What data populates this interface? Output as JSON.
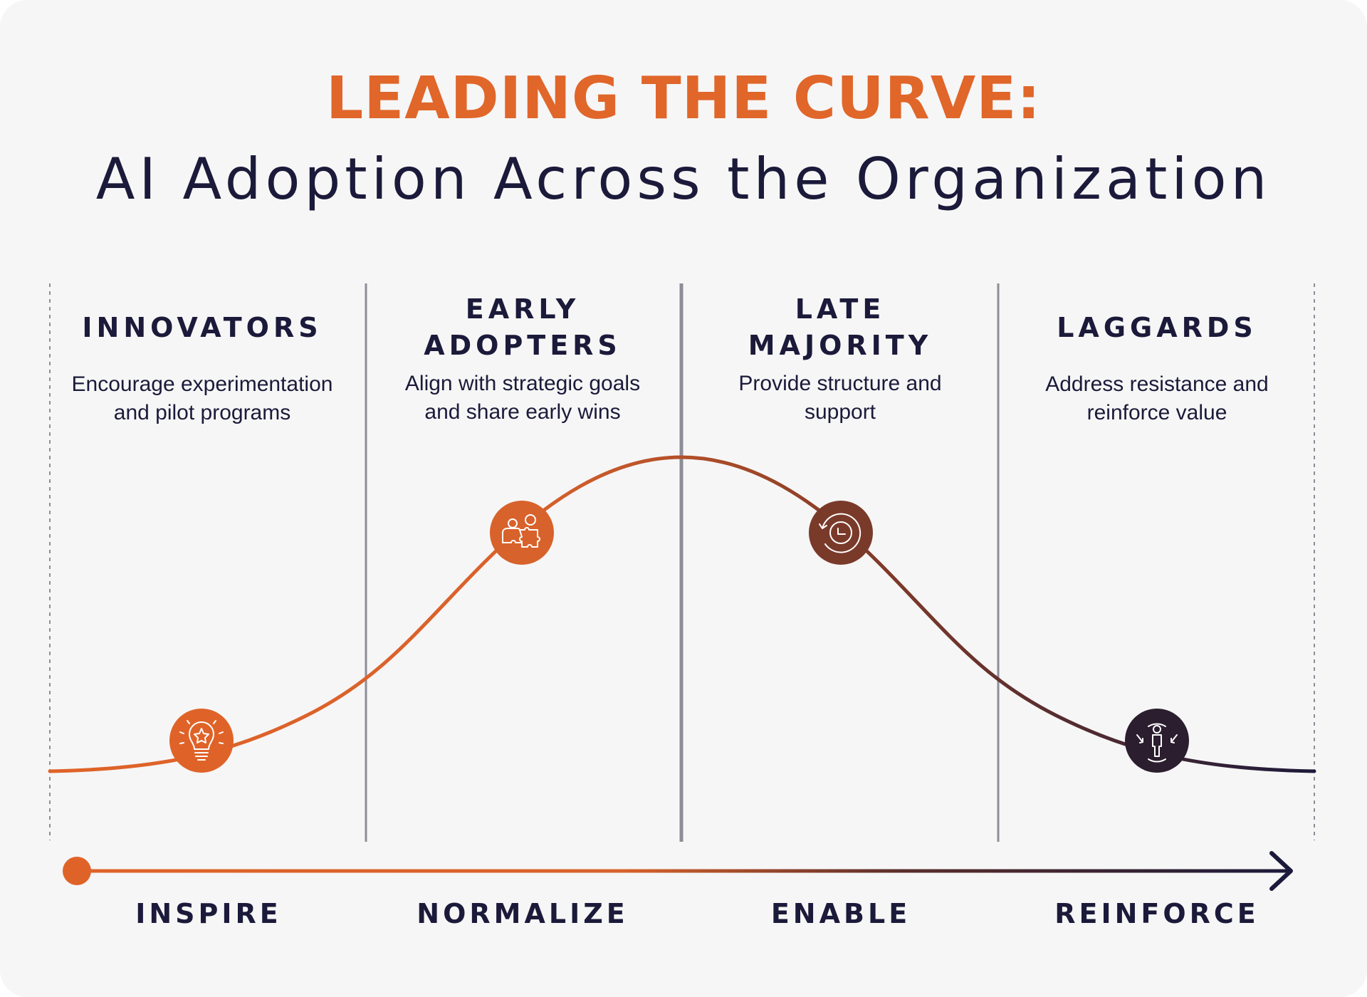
{
  "header": {
    "title": "LEADING THE CURVE:",
    "subtitle": "AI Adoption Across the Organization"
  },
  "colors": {
    "background": "#f6f6f6",
    "title_orange": "#e0662a",
    "navy": "#1b1a3a",
    "divider_gray": "#8d8d99",
    "orange": "#df6328",
    "brown": "#7a3a2a",
    "dark_plum": "#2b1e2e"
  },
  "stages": [
    {
      "name": "INNOVATORS",
      "description": "Encourage experimentation\nand pilot programs",
      "icon": "lightbulb-star-icon",
      "action": "INSPIRE"
    },
    {
      "name": "EARLY\nADOPTERS",
      "description": "Align with strategic goals\nand share early wins",
      "icon": "people-puzzle-icon",
      "action": "NORMALIZE"
    },
    {
      "name": "LATE\nMAJORITY",
      "description": "Provide structure and\nsupport",
      "icon": "clock-cycle-icon",
      "action": "ENABLE"
    },
    {
      "name": "LAGGARDS",
      "description": "Address resistance and\nreinforce value",
      "icon": "person-arrows-icon",
      "action": "REINFORCE"
    }
  ]
}
